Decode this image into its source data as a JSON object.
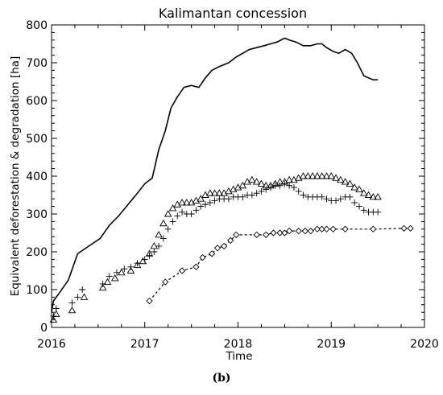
{
  "caption": "(b)",
  "chart_data": {
    "type": "line",
    "title": "Kalimantan concession",
    "xlabel": "Time",
    "ylabel": "Equivalent deforestation & degradation [ha]",
    "xlim": [
      2016,
      2020
    ],
    "ylim": [
      0,
      800
    ],
    "x_ticks": [
      2016,
      2017,
      2018,
      2019,
      2020
    ],
    "y_ticks": [
      0,
      100,
      200,
      300,
      400,
      500,
      600,
      700,
      800
    ],
    "x_tick_labels": [
      "2016",
      "2017",
      "2018",
      "2019",
      "2020"
    ],
    "y_tick_labels": [
      "0",
      "100",
      "200",
      "300",
      "400",
      "500",
      "600",
      "700",
      "800"
    ],
    "grid": false,
    "legend": "none",
    "series": [
      {
        "marker": "none",
        "line": "solid",
        "x": [
          2016.0,
          2016.02,
          2016.08,
          2016.18,
          2016.28,
          2016.4,
          2016.52,
          2016.62,
          2016.72,
          2016.82,
          2016.92,
          2017.0,
          2017.08,
          2017.15,
          2017.22,
          2017.28,
          2017.35,
          2017.42,
          2017.5,
          2017.58,
          2017.65,
          2017.72,
          2017.8,
          2017.9,
          2017.98,
          2018.05,
          2018.12,
          2018.2,
          2018.28,
          2018.35,
          2018.42,
          2018.5,
          2018.55,
          2018.62,
          2018.7,
          2018.78,
          2018.85,
          2018.9,
          2018.95,
          2019.02,
          2019.08,
          2019.15,
          2019.22,
          2019.28,
          2019.35,
          2019.45,
          2019.5
        ],
        "y": [
          40,
          70,
          90,
          125,
          195,
          215,
          235,
          270,
          295,
          325,
          355,
          380,
          395,
          470,
          520,
          580,
          610,
          635,
          640,
          635,
          660,
          680,
          690,
          700,
          715,
          725,
          735,
          740,
          745,
          750,
          755,
          765,
          760,
          755,
          745,
          745,
          750,
          750,
          740,
          730,
          725,
          735,
          725,
          700,
          665,
          655,
          655
        ]
      },
      {
        "marker": "triangle",
        "line": "none",
        "x": [
          2016.02,
          2016.05,
          2016.22,
          2016.35,
          2016.55,
          2016.6,
          2016.68,
          2016.75,
          2016.85,
          2016.92,
          2016.98,
          2017.05,
          2017.1,
          2017.15,
          2017.2,
          2017.25,
          2017.3,
          2017.35,
          2017.4,
          2017.45,
          2017.5,
          2017.55,
          2017.6,
          2017.65,
          2017.7,
          2017.75,
          2017.8,
          2017.85,
          2017.9,
          2017.95,
          2018.0,
          2018.05,
          2018.1,
          2018.15,
          2018.2,
          2018.25,
          2018.3,
          2018.35,
          2018.4,
          2018.45,
          2018.5,
          2018.55,
          2018.6,
          2018.65,
          2018.7,
          2018.75,
          2018.8,
          2018.85,
          2018.9,
          2018.95,
          2019.0,
          2019.05,
          2019.1,
          2019.15,
          2019.2,
          2019.25,
          2019.3,
          2019.35,
          2019.4,
          2019.45,
          2019.5
        ],
        "y": [
          20,
          35,
          45,
          80,
          105,
          120,
          130,
          145,
          150,
          165,
          175,
          195,
          215,
          245,
          275,
          300,
          315,
          325,
          330,
          330,
          330,
          335,
          340,
          350,
          355,
          355,
          355,
          355,
          360,
          365,
          370,
          375,
          385,
          390,
          385,
          380,
          375,
          375,
          380,
          385,
          385,
          390,
          390,
          395,
          400,
          400,
          400,
          400,
          400,
          400,
          400,
          395,
          390,
          385,
          380,
          370,
          365,
          355,
          350,
          345,
          345
        ]
      },
      {
        "marker": "plus",
        "line": "none",
        "x": [
          2016.02,
          2016.05,
          2016.22,
          2016.28,
          2016.33,
          2016.55,
          2016.62,
          2016.7,
          2016.78,
          2016.85,
          2016.92,
          2017.0,
          2017.05,
          2017.1,
          2017.15,
          2017.2,
          2017.25,
          2017.3,
          2017.35,
          2017.4,
          2017.45,
          2017.5,
          2017.55,
          2017.6,
          2017.65,
          2017.7,
          2017.75,
          2017.8,
          2017.85,
          2017.9,
          2017.95,
          2018.0,
          2018.05,
          2018.1,
          2018.15,
          2018.2,
          2018.25,
          2018.3,
          2018.35,
          2018.4,
          2018.45,
          2018.5,
          2018.55,
          2018.6,
          2018.65,
          2018.7,
          2018.75,
          2018.8,
          2018.85,
          2018.9,
          2018.95,
          2019.0,
          2019.05,
          2019.1,
          2019.15,
          2019.2,
          2019.25,
          2019.3,
          2019.35,
          2019.4,
          2019.45,
          2019.5
        ],
        "y": [
          30,
          50,
          65,
          80,
          100,
          115,
          135,
          145,
          155,
          160,
          170,
          180,
          190,
          200,
          215,
          235,
          260,
          280,
          295,
          305,
          300,
          300,
          310,
          320,
          325,
          330,
          335,
          340,
          340,
          340,
          345,
          345,
          345,
          350,
          350,
          355,
          360,
          365,
          370,
          375,
          375,
          380,
          375,
          370,
          360,
          350,
          345,
          345,
          345,
          345,
          340,
          335,
          335,
          340,
          345,
          345,
          330,
          320,
          310,
          305,
          305,
          305
        ]
      },
      {
        "marker": "diamond",
        "line": "dashed",
        "x": [
          2017.05,
          2017.22,
          2017.4,
          2017.55,
          2017.62,
          2017.72,
          2017.78,
          2017.85,
          2017.92,
          2017.98,
          2018.2,
          2018.3,
          2018.38,
          2018.45,
          2018.5,
          2018.55,
          2018.65,
          2018.72,
          2018.78,
          2018.85,
          2018.9,
          2018.95,
          2019.02,
          2019.15,
          2019.45,
          2019.78,
          2019.85
        ],
        "y": [
          70,
          120,
          150,
          160,
          185,
          195,
          210,
          215,
          230,
          245,
          245,
          245,
          250,
          250,
          250,
          255,
          255,
          255,
          255,
          260,
          260,
          260,
          260,
          260,
          260,
          262,
          262
        ]
      }
    ]
  }
}
